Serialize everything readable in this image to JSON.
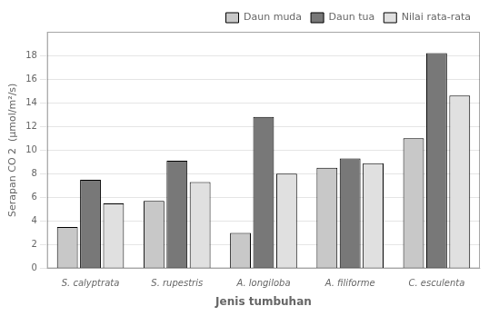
{
  "chart_data": {
    "type": "bar",
    "categories": [
      "S. calyptrata",
      "S. rupestris",
      "A. longiloba",
      "A. filiforme",
      "C. esculenta"
    ],
    "series": [
      {
        "name": "Daun muda",
        "color": "#c8c8c8",
        "values": [
          3.5,
          5.7,
          3.0,
          8.5,
          11.0
        ]
      },
      {
        "name": "Daun tua",
        "color": "#787878",
        "values": [
          7.5,
          9.1,
          12.8,
          9.3,
          18.2
        ]
      },
      {
        "name": "Nilai rata-rata",
        "color": "#e0e0e0",
        "values": [
          5.5,
          7.3,
          8.0,
          8.9,
          14.6
        ]
      }
    ],
    "xlabel": "Jenis tumbuhan",
    "ylabel": "Serapan CO 2  (μmol/m²/s)",
    "ylim": [
      0,
      20
    ],
    "yticks": [
      0,
      2,
      4,
      6,
      8,
      10,
      12,
      14,
      16,
      18
    ],
    "grid": true,
    "legend": "upper right"
  }
}
